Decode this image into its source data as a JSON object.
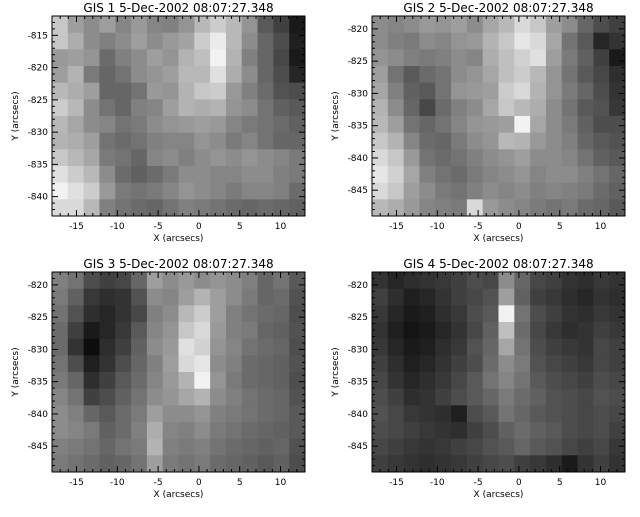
{
  "chart_data": [
    {
      "type": "heatmap",
      "title": "GIS 1  5-Dec-2002 08:07:27.348",
      "xlabel": "X (arcsecs)",
      "ylabel": "Y (arcsecs)",
      "xlim": [
        -18,
        13
      ],
      "ylim": [
        -843,
        -812
      ],
      "xticks": [
        -15,
        -10,
        -5,
        0,
        5,
        10
      ],
      "yticks": [
        -815,
        -820,
        -825,
        -830,
        -835,
        -840
      ],
      "grid_cols": 16,
      "grid_rows": 12,
      "pixels": [
        [
          0.78,
          0.62,
          0.55,
          0.62,
          0.52,
          0.6,
          0.52,
          0.5,
          0.58,
          0.72,
          0.8,
          0.72,
          0.58,
          0.35,
          0.25,
          0.1
        ],
        [
          0.78,
          0.68,
          0.55,
          0.5,
          0.55,
          0.62,
          0.55,
          0.6,
          0.64,
          0.8,
          0.92,
          0.72,
          0.55,
          0.4,
          0.3,
          0.12
        ],
        [
          0.6,
          0.62,
          0.58,
          0.42,
          0.5,
          0.55,
          0.62,
          0.58,
          0.7,
          0.75,
          0.95,
          0.7,
          0.5,
          0.4,
          0.28,
          0.1
        ],
        [
          0.62,
          0.7,
          0.48,
          0.4,
          0.45,
          0.55,
          0.58,
          0.62,
          0.72,
          0.72,
          0.88,
          0.68,
          0.55,
          0.4,
          0.3,
          0.15
        ],
        [
          0.72,
          0.68,
          0.62,
          0.4,
          0.4,
          0.45,
          0.6,
          0.58,
          0.7,
          0.78,
          0.8,
          0.6,
          0.5,
          0.42,
          0.32,
          0.3
        ],
        [
          0.8,
          0.72,
          0.55,
          0.45,
          0.4,
          0.5,
          0.52,
          0.62,
          0.7,
          0.68,
          0.7,
          0.58,
          0.55,
          0.45,
          0.38,
          0.35
        ],
        [
          0.72,
          0.65,
          0.55,
          0.52,
          0.45,
          0.48,
          0.55,
          0.58,
          0.6,
          0.62,
          0.6,
          0.52,
          0.48,
          0.45,
          0.42,
          0.38
        ],
        [
          0.7,
          0.68,
          0.62,
          0.45,
          0.42,
          0.45,
          0.5,
          0.52,
          0.52,
          0.58,
          0.55,
          0.48,
          0.52,
          0.45,
          0.4,
          0.4
        ],
        [
          0.78,
          0.72,
          0.65,
          0.48,
          0.45,
          0.4,
          0.52,
          0.55,
          0.5,
          0.55,
          0.58,
          0.55,
          0.58,
          0.55,
          0.52,
          0.48
        ],
        [
          0.88,
          0.8,
          0.72,
          0.55,
          0.42,
          0.38,
          0.42,
          0.48,
          0.55,
          0.55,
          0.52,
          0.52,
          0.55,
          0.55,
          0.5,
          0.48
        ],
        [
          0.95,
          0.88,
          0.8,
          0.6,
          0.48,
          0.45,
          0.48,
          0.52,
          0.58,
          0.55,
          0.52,
          0.48,
          0.52,
          0.52,
          0.5,
          0.42
        ],
        [
          0.85,
          0.85,
          0.72,
          0.5,
          0.45,
          0.42,
          0.4,
          0.45,
          0.5,
          0.48,
          0.45,
          0.42,
          0.4,
          0.42,
          0.4,
          0.38
        ]
      ]
    },
    {
      "type": "heatmap",
      "title": "GIS 2  5-Dec-2002 08:07:27.348",
      "xlabel": "X (arcsecs)",
      "ylabel": "Y (arcsecs)",
      "xlim": [
        -18,
        13
      ],
      "ylim": [
        -849,
        -818
      ],
      "xticks": [
        -15,
        -10,
        -5,
        0,
        5,
        10
      ],
      "yticks": [
        -820,
        -825,
        -830,
        -835,
        -840,
        -845
      ],
      "grid_cols": 16,
      "grid_rows": 12,
      "pixels": [
        [
          0.55,
          0.52,
          0.55,
          0.6,
          0.58,
          0.62,
          0.55,
          0.65,
          0.72,
          0.85,
          0.78,
          0.62,
          0.55,
          0.4,
          0.3,
          0.25
        ],
        [
          0.55,
          0.5,
          0.48,
          0.55,
          0.52,
          0.58,
          0.6,
          0.7,
          0.78,
          0.9,
          0.85,
          0.65,
          0.45,
          0.35,
          0.15,
          0.2
        ],
        [
          0.58,
          0.55,
          0.5,
          0.48,
          0.5,
          0.55,
          0.52,
          0.68,
          0.75,
          0.82,
          0.88,
          0.62,
          0.48,
          0.38,
          0.25,
          0.1
        ],
        [
          0.62,
          0.45,
          0.35,
          0.42,
          0.45,
          0.55,
          0.58,
          0.65,
          0.75,
          0.8,
          0.72,
          0.58,
          0.45,
          0.35,
          0.28,
          0.18
        ],
        [
          0.65,
          0.5,
          0.38,
          0.35,
          0.45,
          0.58,
          0.6,
          0.62,
          0.8,
          0.85,
          0.7,
          0.58,
          0.48,
          0.4,
          0.3,
          0.2
        ],
        [
          0.7,
          0.55,
          0.4,
          0.28,
          0.42,
          0.5,
          0.55,
          0.65,
          0.78,
          0.72,
          0.68,
          0.55,
          0.45,
          0.35,
          0.32,
          0.22
        ],
        [
          0.72,
          0.62,
          0.45,
          0.4,
          0.45,
          0.52,
          0.58,
          0.6,
          0.62,
          0.95,
          0.65,
          0.55,
          0.48,
          0.38,
          0.3,
          0.3
        ],
        [
          0.78,
          0.7,
          0.52,
          0.42,
          0.4,
          0.48,
          0.55,
          0.58,
          0.72,
          0.7,
          0.6,
          0.55,
          0.5,
          0.4,
          0.35,
          0.32
        ],
        [
          0.85,
          0.78,
          0.6,
          0.45,
          0.42,
          0.45,
          0.5,
          0.55,
          0.58,
          0.62,
          0.55,
          0.55,
          0.52,
          0.45,
          0.38,
          0.35
        ],
        [
          0.9,
          0.82,
          0.65,
          0.5,
          0.45,
          0.42,
          0.48,
          0.52,
          0.55,
          0.58,
          0.52,
          0.55,
          0.55,
          0.5,
          0.45,
          0.4
        ],
        [
          0.85,
          0.78,
          0.62,
          0.55,
          0.48,
          0.45,
          0.5,
          0.55,
          0.52,
          0.55,
          0.5,
          0.52,
          0.5,
          0.48,
          0.42,
          0.38
        ],
        [
          0.72,
          0.68,
          0.6,
          0.52,
          0.5,
          0.48,
          0.85,
          0.6,
          0.55,
          0.52,
          0.48,
          0.45,
          0.48,
          0.42,
          0.4,
          0.35
        ]
      ]
    },
    {
      "type": "heatmap",
      "title": "GIS 3  5-Dec-2002 08:07:27.348",
      "xlabel": "X (arcsecs)",
      "ylabel": "Y (arcsecs)",
      "xlim": [
        -18,
        13
      ],
      "ylim": [
        -849,
        -818
      ],
      "xticks": [
        -15,
        -10,
        -5,
        0,
        5,
        10
      ],
      "yticks": [
        -820,
        -825,
        -830,
        -835,
        -840,
        -845
      ],
      "grid_cols": 16,
      "grid_rows": 12,
      "pixels": [
        [
          0.5,
          0.45,
          0.3,
          0.25,
          0.28,
          0.4,
          0.62,
          0.55,
          0.6,
          0.55,
          0.58,
          0.55,
          0.5,
          0.4,
          0.45,
          0.35
        ],
        [
          0.48,
          0.38,
          0.22,
          0.18,
          0.2,
          0.32,
          0.55,
          0.52,
          0.62,
          0.7,
          0.62,
          0.55,
          0.48,
          0.4,
          0.42,
          0.32
        ],
        [
          0.45,
          0.32,
          0.18,
          0.15,
          0.2,
          0.28,
          0.5,
          0.55,
          0.72,
          0.8,
          0.62,
          0.5,
          0.45,
          0.42,
          0.4,
          0.3
        ],
        [
          0.42,
          0.25,
          0.1,
          0.15,
          0.22,
          0.35,
          0.52,
          0.58,
          0.78,
          0.85,
          0.6,
          0.5,
          0.48,
          0.4,
          0.38,
          0.32
        ],
        [
          0.42,
          0.2,
          0.05,
          0.18,
          0.25,
          0.38,
          0.55,
          0.6,
          0.88,
          0.82,
          0.58,
          0.52,
          0.45,
          0.42,
          0.4,
          0.3
        ],
        [
          0.45,
          0.3,
          0.12,
          0.2,
          0.3,
          0.4,
          0.5,
          0.62,
          0.85,
          0.9,
          0.55,
          0.5,
          0.42,
          0.4,
          0.38,
          0.32
        ],
        [
          0.48,
          0.4,
          0.18,
          0.25,
          0.35,
          0.42,
          0.52,
          0.6,
          0.7,
          0.95,
          0.58,
          0.48,
          0.42,
          0.4,
          0.38,
          0.3
        ],
        [
          0.52,
          0.45,
          0.25,
          0.3,
          0.38,
          0.45,
          0.55,
          0.58,
          0.65,
          0.7,
          0.55,
          0.5,
          0.45,
          0.42,
          0.4,
          0.32
        ],
        [
          0.55,
          0.5,
          0.4,
          0.35,
          0.42,
          0.48,
          0.62,
          0.55,
          0.55,
          0.58,
          0.5,
          0.48,
          0.45,
          0.42,
          0.4,
          0.35
        ],
        [
          0.55,
          0.52,
          0.48,
          0.38,
          0.42,
          0.5,
          0.68,
          0.52,
          0.5,
          0.55,
          0.48,
          0.45,
          0.42,
          0.4,
          0.38,
          0.35
        ],
        [
          0.5,
          0.48,
          0.45,
          0.4,
          0.45,
          0.48,
          0.7,
          0.5,
          0.48,
          0.5,
          0.45,
          0.42,
          0.4,
          0.38,
          0.4,
          0.32
        ],
        [
          0.48,
          0.45,
          0.42,
          0.38,
          0.4,
          0.45,
          0.62,
          0.48,
          0.45,
          0.48,
          0.42,
          0.4,
          0.38,
          0.35,
          0.38,
          0.3
        ]
      ]
    },
    {
      "type": "heatmap",
      "title": "GIS 4  5-Dec-2002 08:07:27.348",
      "xlabel": "X (arcsecs)",
      "ylabel": "Y (arcsecs)",
      "xlim": [
        -18,
        13
      ],
      "ylim": [
        -849,
        -818
      ],
      "xticks": [
        -15,
        -10,
        -5,
        0,
        5,
        10
      ],
      "yticks": [
        -820,
        -825,
        -830,
        -835,
        -840,
        -845
      ],
      "grid_cols": 16,
      "grid_rows": 12,
      "pixels": [
        [
          0.2,
          0.15,
          0.18,
          0.2,
          0.22,
          0.25,
          0.3,
          0.28,
          0.55,
          0.4,
          0.28,
          0.25,
          0.2,
          0.18,
          0.22,
          0.2
        ],
        [
          0.25,
          0.18,
          0.12,
          0.15,
          0.2,
          0.25,
          0.28,
          0.32,
          0.62,
          0.38,
          0.25,
          0.22,
          0.18,
          0.15,
          0.2,
          0.18
        ],
        [
          0.22,
          0.15,
          0.1,
          0.12,
          0.18,
          0.22,
          0.3,
          0.35,
          0.95,
          0.45,
          0.3,
          0.25,
          0.2,
          0.18,
          0.22,
          0.2
        ],
        [
          0.2,
          0.12,
          0.08,
          0.1,
          0.15,
          0.2,
          0.28,
          0.38,
          0.75,
          0.42,
          0.28,
          0.22,
          0.18,
          0.2,
          0.25,
          0.22
        ],
        [
          0.22,
          0.15,
          0.1,
          0.12,
          0.18,
          0.22,
          0.32,
          0.4,
          0.65,
          0.45,
          0.3,
          0.25,
          0.22,
          0.2,
          0.28,
          0.25
        ],
        [
          0.25,
          0.18,
          0.12,
          0.15,
          0.2,
          0.25,
          0.3,
          0.42,
          0.55,
          0.48,
          0.32,
          0.28,
          0.25,
          0.22,
          0.28,
          0.25
        ],
        [
          0.28,
          0.2,
          0.15,
          0.18,
          0.22,
          0.28,
          0.35,
          0.45,
          0.52,
          0.45,
          0.35,
          0.3,
          0.28,
          0.25,
          0.3,
          0.28
        ],
        [
          0.3,
          0.25,
          0.18,
          0.2,
          0.25,
          0.3,
          0.35,
          0.4,
          0.48,
          0.42,
          0.38,
          0.32,
          0.3,
          0.28,
          0.32,
          0.3
        ],
        [
          0.32,
          0.28,
          0.22,
          0.2,
          0.18,
          0.12,
          0.3,
          0.35,
          0.45,
          0.4,
          0.35,
          0.32,
          0.3,
          0.28,
          0.3,
          0.28
        ],
        [
          0.3,
          0.28,
          0.25,
          0.22,
          0.2,
          0.18,
          0.25,
          0.3,
          0.38,
          0.42,
          0.38,
          0.35,
          0.3,
          0.28,
          0.3,
          0.25
        ],
        [
          0.28,
          0.25,
          0.22,
          0.2,
          0.22,
          0.25,
          0.28,
          0.32,
          0.35,
          0.4,
          0.35,
          0.32,
          0.28,
          0.25,
          0.28,
          0.22
        ],
        [
          0.25,
          0.22,
          0.2,
          0.18,
          0.2,
          0.22,
          0.25,
          0.28,
          0.3,
          0.25,
          0.22,
          0.18,
          0.1,
          0.2,
          0.25,
          0.2
        ]
      ]
    }
  ]
}
